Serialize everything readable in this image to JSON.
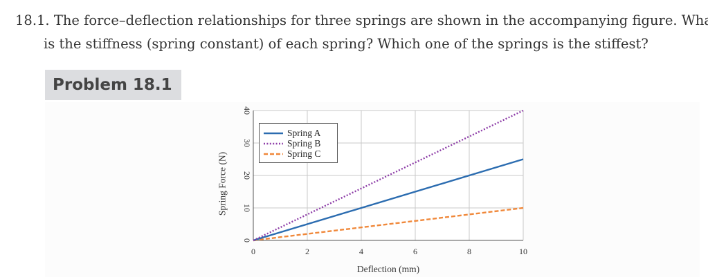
{
  "question": {
    "line1": "18.1. The force–deflection relationships for three springs are shown in the accompanying figure. What",
    "line2": "is the stiffness (spring constant) of each spring? Which one of the springs is the stiffest?"
  },
  "problem": {
    "title": "Problem 18.1"
  },
  "chart_data": {
    "type": "line",
    "title": "",
    "xlabel": "Deflection (mm)",
    "ylabel": "Spring Force (N)",
    "xlim": [
      0,
      10
    ],
    "ylim": [
      0,
      40
    ],
    "xticks": [
      0,
      2,
      4,
      6,
      8,
      10
    ],
    "yticks": [
      0,
      10,
      20,
      30,
      40
    ],
    "grid": true,
    "legend_position": "top-left",
    "series": [
      {
        "name": "Spring A",
        "x": [
          0,
          10
        ],
        "y": [
          0,
          25
        ],
        "color": "#2b6cb0",
        "style": "solid"
      },
      {
        "name": "Spring B",
        "x": [
          0,
          10
        ],
        "y": [
          0,
          40
        ],
        "color": "#8e3ea8",
        "style": "dotted"
      },
      {
        "name": "Spring C",
        "x": [
          0,
          10
        ],
        "y": [
          0,
          10
        ],
        "color": "#f0883a",
        "style": "dashed"
      }
    ]
  }
}
